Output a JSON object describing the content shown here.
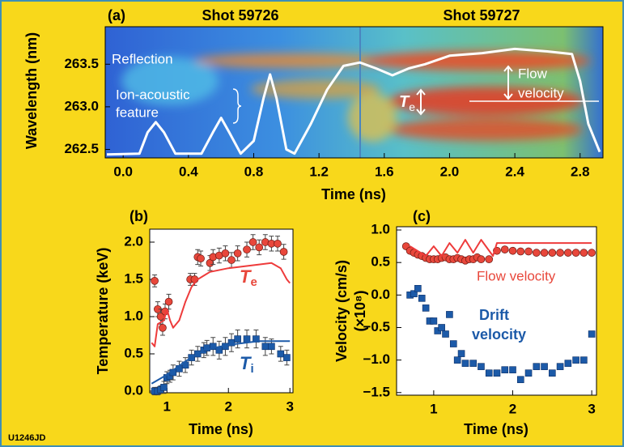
{
  "figure_id": "U1246JD",
  "chart_data": [
    {
      "type": "line",
      "panel": "(a)",
      "titles": [
        "Shot 59726",
        "Shot 59727"
      ],
      "x_label": "Time (ns)",
      "y_label": "Wavelength (nm)",
      "xlim": [
        -0.11,
        2.94
      ],
      "xticks": [
        {
          "value": 0,
          "label": "0.0"
        },
        0.4,
        0.8,
        1.2,
        1.6,
        {
          "value": 2,
          "label": "2.0"
        },
        2.4,
        2.8
      ],
      "ylim": [
        262.4,
        263.94
      ],
      "yticks": [
        262.5,
        {
          "value": 263,
          "label": "263.0"
        },
        263.5
      ],
      "annotations": {
        "reflection": "Reflection",
        "ion_acoustic": [
          "Ion-acoustic",
          "feature"
        ],
        "te": {
          "symbol": "T",
          "sub": "e"
        },
        "flow_velocity": [
          "Flow",
          "velocity"
        ]
      },
      "series": [
        {
          "color": "#ffffff",
          "x": [
            -0.1,
            0.1,
            0.15,
            0.2,
            0.25,
            0.32,
            0.48,
            0.55,
            0.6,
            0.65,
            0.72,
            0.8,
            0.86,
            0.9,
            0.94,
            1.0,
            1.05,
            1.15,
            1.25,
            1.35,
            1.45,
            1.55,
            1.65,
            1.75,
            1.85,
            2.0,
            2.2,
            2.4,
            2.6,
            2.75,
            2.8,
            2.85,
            2.92
          ],
          "values": [
            262.44,
            262.45,
            262.7,
            262.82,
            262.7,
            262.45,
            262.45,
            262.7,
            262.87,
            262.7,
            262.45,
            262.6,
            263.1,
            263.38,
            263.1,
            262.5,
            262.45,
            262.8,
            263.2,
            263.48,
            263.52,
            263.45,
            263.37,
            263.45,
            263.5,
            263.6,
            263.63,
            263.68,
            263.65,
            263.62,
            263.3,
            262.8,
            262.47
          ]
        }
      ]
    },
    {
      "type": "scatter",
      "panel": "(b)",
      "x_label": "Time (ns)",
      "y_label": "Temperature (keV)",
      "xlim": [
        0.72,
        3.05
      ],
      "xticks": [
        1,
        2,
        3
      ],
      "ylim": [
        -0.022,
        2.174
      ],
      "yticks": [
        {
          "value": 0,
          "label": "0.0"
        },
        0.5,
        {
          "value": 1,
          "label": "1.0"
        },
        1.5,
        {
          "value": 2,
          "label": "2.0"
        }
      ],
      "annotations": {
        "te": {
          "symbol": "T",
          "sub": "e"
        },
        "ti": {
          "symbol": "T",
          "sub": "i"
        }
      },
      "series": [
        {
          "color": "#e8473b",
          "marker": "circle",
          "x": [
            0.8,
            0.85,
            0.9,
            0.93,
            0.97,
            1.03,
            1.38,
            1.45,
            1.5,
            1.55,
            1.7,
            1.75,
            1.85,
            1.95,
            2.05,
            2.15,
            2.3,
            2.4,
            2.5,
            2.6,
            2.7,
            2.8,
            2.9
          ],
          "values": [
            1.48,
            1.1,
            1.0,
            0.85,
            1.07,
            1.2,
            1.5,
            1.5,
            1.8,
            1.78,
            1.72,
            1.8,
            1.82,
            1.85,
            1.76,
            1.85,
            1.9,
            2.0,
            1.93,
            2.0,
            1.98,
            1.98,
            1.87
          ],
          "errors": [
            0.08,
            0.1,
            0.1,
            0.1,
            0.1,
            0.1,
            0.08,
            0.08,
            0.1,
            0.1,
            0.1,
            0.1,
            0.1,
            0.1,
            0.1,
            0.1,
            0.1,
            0.1,
            0.1,
            0.1,
            0.1,
            0.1,
            0.1
          ]
        },
        {
          "color": "#ee3b3b",
          "x": [
            0.75,
            0.8,
            0.85,
            0.95,
            1.0,
            1.05,
            1.1,
            1.2,
            1.3,
            1.4,
            1.5,
            1.7,
            2.0,
            2.5,
            2.7,
            2.85,
            2.95,
            3.0
          ],
          "values": [
            0.65,
            0.6,
            0.9,
            0.95,
            1.1,
            0.95,
            0.85,
            0.95,
            1.2,
            1.4,
            1.5,
            1.6,
            1.65,
            1.7,
            1.72,
            1.65,
            1.5,
            1.45
          ]
        },
        {
          "color": "#1c5aa8",
          "marker": "square",
          "x": [
            0.8,
            0.85,
            0.9,
            0.95,
            1.0,
            1.05,
            1.1,
            1.2,
            1.3,
            1.4,
            1.5,
            1.6,
            1.65,
            1.75,
            1.85,
            1.95,
            2.05,
            2.15,
            2.3,
            2.45,
            2.6,
            2.7,
            2.85,
            2.95
          ],
          "values": [
            0.0,
            0.0,
            0.02,
            0.05,
            0.18,
            0.2,
            0.25,
            0.3,
            0.35,
            0.45,
            0.5,
            0.55,
            0.58,
            0.6,
            0.55,
            0.6,
            0.65,
            0.7,
            0.7,
            0.7,
            0.6,
            0.6,
            0.5,
            0.45
          ],
          "errors": [
            0.05,
            0.05,
            0.05,
            0.08,
            0.08,
            0.08,
            0.1,
            0.1,
            0.1,
            0.1,
            0.1,
            0.1,
            0.1,
            0.12,
            0.12,
            0.12,
            0.12,
            0.12,
            0.12,
            0.12,
            0.12,
            0.1,
            0.1,
            0.1
          ]
        },
        {
          "color": "#1c5aa8",
          "x": [
            0.75,
            1.0,
            1.3,
            1.6,
            2.0,
            2.5,
            3.0
          ],
          "values": [
            0.1,
            0.22,
            0.4,
            0.55,
            0.62,
            0.67,
            0.67
          ]
        }
      ]
    },
    {
      "type": "scatter",
      "panel": "(c)",
      "x_label": "Time (ns)",
      "y_label": [
        "Velocity (cm/s)",
        "(×10⁸)"
      ],
      "xlim": [
        0.53,
        3.06
      ],
      "xticks": [
        1,
        2,
        3
      ],
      "ylim": [
        -1.54,
        1.05
      ],
      "yticks": [
        {
          "value": 1,
          "label": "1.0"
        },
        0.5,
        {
          "value": 0,
          "label": "0.0"
        },
        {
          "value": -0.5,
          "label": "−0.5"
        },
        {
          "value": -1,
          "label": "−1.0"
        },
        {
          "value": -1.5,
          "label": "−1.5"
        }
      ],
      "annotations": {
        "flow": "Flow velocity",
        "drift": [
          "Drift",
          "velocity"
        ]
      },
      "series": [
        {
          "color": "#e8473b",
          "marker": "circle",
          "x": [
            0.65,
            0.7,
            0.75,
            0.8,
            0.85,
            0.9,
            0.95,
            1.0,
            1.05,
            1.1,
            1.15,
            1.2,
            1.25,
            1.3,
            1.35,
            1.4,
            1.45,
            1.5,
            1.55,
            1.6,
            1.7,
            1.8,
            1.9,
            2.0,
            2.1,
            2.2,
            2.3,
            2.4,
            2.5,
            2.6,
            2.7,
            2.8,
            2.9,
            3.0
          ],
          "values": [
            0.75,
            0.68,
            0.65,
            0.62,
            0.6,
            0.57,
            0.55,
            0.55,
            0.55,
            0.57,
            0.58,
            0.55,
            0.55,
            0.57,
            0.55,
            0.53,
            0.55,
            0.55,
            0.58,
            0.55,
            0.55,
            0.68,
            0.7,
            0.68,
            0.67,
            0.67,
            0.65,
            0.65,
            0.65,
            0.65,
            0.65,
            0.65,
            0.65,
            0.65
          ]
        },
        {
          "color": "#ee3b3b",
          "x": [
            0.7,
            0.9,
            1.0,
            1.1,
            1.2,
            1.3,
            1.4,
            1.5,
            1.6,
            1.75,
            1.8,
            2.0,
            3.0
          ],
          "values": [
            0.75,
            0.6,
            0.75,
            0.6,
            0.8,
            0.65,
            0.85,
            0.65,
            0.85,
            0.6,
            0.8,
            0.8,
            0.8
          ]
        },
        {
          "color": "#1c5aa8",
          "marker": "square",
          "x": [
            0.7,
            0.75,
            0.8,
            0.85,
            0.9,
            0.95,
            1.0,
            1.05,
            1.1,
            1.15,
            1.2,
            1.25,
            1.3,
            1.35,
            1.4,
            1.5,
            1.6,
            1.7,
            1.8,
            1.9,
            2.0,
            2.1,
            2.2,
            2.3,
            2.4,
            2.5,
            2.6,
            2.7,
            2.8,
            2.9,
            3.0
          ],
          "values": [
            0.0,
            0.02,
            0.1,
            -0.05,
            -0.2,
            -0.4,
            -0.4,
            -0.55,
            -0.5,
            -0.6,
            -0.3,
            -0.75,
            -1.0,
            -0.9,
            -1.05,
            -1.05,
            -1.1,
            -1.2,
            -1.2,
            -1.15,
            -1.15,
            -1.3,
            -1.2,
            -1.1,
            -1.1,
            -1.2,
            -1.1,
            -1.05,
            -1.0,
            -1.0,
            -0.6
          ]
        }
      ]
    }
  ]
}
